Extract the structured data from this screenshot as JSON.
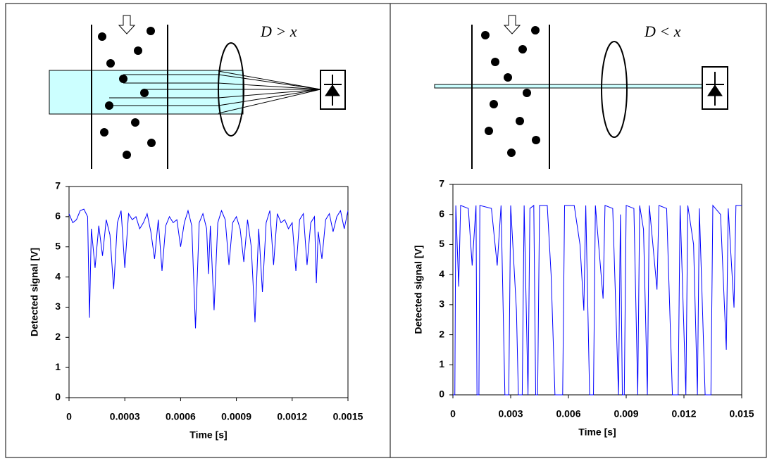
{
  "diagrams": [
    {
      "label": "D > x"
    },
    {
      "label": "D < x"
    }
  ],
  "chart_data": [
    {
      "type": "line",
      "x_label": "Time [s]",
      "y_label": "Detected signal [V]",
      "xlim": [
        0,
        0.0015
      ],
      "xticks": [
        0,
        0.0003,
        0.0006,
        0.0009,
        0.0012,
        0.0015
      ],
      "ylim": [
        0,
        7
      ],
      "yticks": [
        0,
        1,
        2,
        3,
        4,
        5,
        6,
        7
      ],
      "x": [
        0,
        2e-05,
        4e-05,
        6e-05,
        8e-05,
        0.0001,
        0.00011,
        0.00012,
        0.00014,
        0.00016,
        0.00018,
        0.0002,
        0.00022,
        0.00024,
        0.00026,
        0.00028,
        0.0003,
        0.00032,
        0.00034,
        0.00036,
        0.00038,
        0.0004,
        0.00042,
        0.00044,
        0.00046,
        0.00048,
        0.0005,
        0.00052,
        0.00054,
        0.00056,
        0.00058,
        0.0006,
        0.00062,
        0.00064,
        0.00066,
        0.00068,
        0.0007,
        0.00072,
        0.00074,
        0.00075,
        0.00076,
        0.00078,
        0.0008,
        0.00082,
        0.00084,
        0.00086,
        0.00088,
        0.0009,
        0.00092,
        0.00094,
        0.00096,
        0.00098,
        0.001,
        0.00102,
        0.00104,
        0.00106,
        0.00108,
        0.0011,
        0.00112,
        0.00114,
        0.00116,
        0.00118,
        0.0012,
        0.00122,
        0.00124,
        0.00126,
        0.00128,
        0.0013,
        0.00132,
        0.00133,
        0.00134,
        0.00136,
        0.00138,
        0.0014,
        0.00142,
        0.00144,
        0.00146,
        0.00148,
        0.0015
      ],
      "series": [
        {
          "color": "#0000ff",
          "values": [
            6.1,
            5.8,
            5.9,
            6.2,
            6.25,
            6.0,
            2.65,
            5.6,
            4.3,
            5.7,
            4.7,
            5.9,
            5.4,
            3.6,
            5.8,
            6.2,
            4.3,
            6.1,
            5.9,
            6.0,
            5.6,
            5.8,
            6.1,
            5.5,
            4.6,
            5.9,
            4.2,
            5.7,
            6.0,
            5.8,
            5.9,
            5.0,
            5.8,
            6.2,
            5.7,
            2.3,
            5.8,
            6.1,
            5.6,
            4.1,
            5.7,
            2.9,
            5.8,
            6.2,
            5.9,
            4.4,
            5.8,
            6.0,
            5.6,
            4.5,
            5.9,
            5.0,
            2.5,
            5.6,
            3.5,
            5.8,
            6.2,
            4.4,
            6.1,
            5.8,
            5.9,
            5.6,
            5.8,
            4.2,
            5.9,
            6.1,
            4.4,
            5.8,
            6.0,
            3.8,
            5.5,
            4.6,
            5.9,
            6.1,
            5.5,
            6.0,
            6.2,
            5.6,
            6.2
          ]
        }
      ]
    },
    {
      "type": "line",
      "x_label": "Time [s]",
      "y_label": "Detected signal [V]",
      "xlim": [
        0,
        0.015
      ],
      "xticks": [
        0,
        0.003,
        0.006,
        0.009,
        0.012,
        0.015
      ],
      "ylim": [
        0,
        7
      ],
      "yticks": [
        0,
        1,
        2,
        3,
        4,
        5,
        6,
        7
      ],
      "x": [
        0,
        0.0001,
        0.00015,
        0.0003,
        0.0004,
        0.0008,
        0.001,
        0.0012,
        0.00125,
        0.00135,
        0.0014,
        0.002,
        0.0023,
        0.0025,
        0.0027,
        0.0029,
        0.003,
        0.0033,
        0.0034,
        0.0036,
        0.0037,
        0.0039,
        0.004,
        0.0042,
        0.0043,
        0.0044,
        0.0045,
        0.0049,
        0.0051,
        0.0053,
        0.0057,
        0.0058,
        0.0063,
        0.0066,
        0.0068,
        0.0069,
        0.0071,
        0.0073,
        0.0074,
        0.0078,
        0.0079,
        0.0083,
        0.0086,
        0.0087,
        0.0088,
        0.0089,
        0.009,
        0.0094,
        0.0096,
        0.0097,
        0.0099,
        0.0101,
        0.0102,
        0.0106,
        0.0107,
        0.0111,
        0.0114,
        0.0117,
        0.0118,
        0.0121,
        0.0122,
        0.0125,
        0.0127,
        0.0128,
        0.0131,
        0.0134,
        0.0135,
        0.0139,
        0.0142,
        0.0143,
        0.0146,
        0.0147,
        0.015
      ],
      "series": [
        {
          "color": "#0000ff",
          "values": [
            0,
            0,
            6.3,
            3.6,
            6.3,
            6.2,
            4.3,
            6.3,
            0,
            0,
            6.3,
            6.2,
            4.3,
            6.3,
            0,
            0,
            6.3,
            2.8,
            0,
            0,
            6.3,
            0,
            6.2,
            6.3,
            0,
            0,
            6.3,
            6.3,
            4.0,
            0,
            0,
            6.3,
            6.3,
            5.0,
            2.8,
            6.3,
            0,
            0,
            6.3,
            3.2,
            6.3,
            6.2,
            0,
            6.0,
            0,
            0,
            6.3,
            6.2,
            0,
            6.3,
            5.5,
            0,
            6.3,
            3.5,
            6.3,
            6.2,
            0,
            0,
            6.3,
            0,
            6.3,
            5.0,
            0,
            6.2,
            0,
            0,
            6.3,
            6.0,
            1.5,
            6.2,
            2.9,
            6.3,
            6.3
          ]
        }
      ]
    }
  ]
}
